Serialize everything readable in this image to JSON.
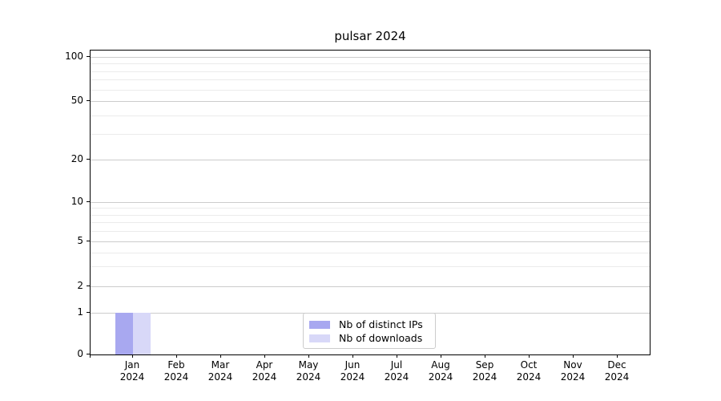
{
  "chart_data": {
    "type": "bar",
    "title": "pulsar 2024",
    "categories": [
      {
        "month": "Jan",
        "year": "2024"
      },
      {
        "month": "Feb",
        "year": "2024"
      },
      {
        "month": "Mar",
        "year": "2024"
      },
      {
        "month": "Apr",
        "year": "2024"
      },
      {
        "month": "May",
        "year": "2024"
      },
      {
        "month": "Jun",
        "year": "2024"
      },
      {
        "month": "Jul",
        "year": "2024"
      },
      {
        "month": "Aug",
        "year": "2024"
      },
      {
        "month": "Sep",
        "year": "2024"
      },
      {
        "month": "Oct",
        "year": "2024"
      },
      {
        "month": "Nov",
        "year": "2024"
      },
      {
        "month": "Dec",
        "year": "2024"
      }
    ],
    "series": [
      {
        "name": "Nb of distinct IPs",
        "color": "#a8a8f0",
        "values": [
          1,
          0,
          0,
          0,
          0,
          0,
          0,
          0,
          0,
          0,
          0,
          0
        ]
      },
      {
        "name": "Nb of downloads",
        "color": "#d8d8f8",
        "values": [
          1,
          0,
          0,
          0,
          0,
          0,
          0,
          0,
          0,
          0,
          0,
          0
        ]
      }
    ],
    "xlabel": "",
    "ylabel": "",
    "y_axis": {
      "scale": "symlog",
      "major_ticks": [
        0,
        1,
        2,
        5,
        10,
        20,
        50,
        100
      ],
      "minor_ticks": [
        3,
        4,
        6,
        7,
        8,
        9,
        30,
        40,
        60,
        70,
        80,
        90
      ],
      "range": [
        0,
        100
      ]
    },
    "grid": true,
    "legend": {
      "position": "lower center",
      "entries": [
        "Nb of distinct IPs",
        "Nb of downloads"
      ]
    }
  },
  "colors": {
    "background": "#ffffff",
    "spine": "#000000",
    "text": "#000000",
    "major_grid": "#cccccc",
    "minor_grid": "#ebebeb",
    "legend_border": "#cccccc"
  }
}
